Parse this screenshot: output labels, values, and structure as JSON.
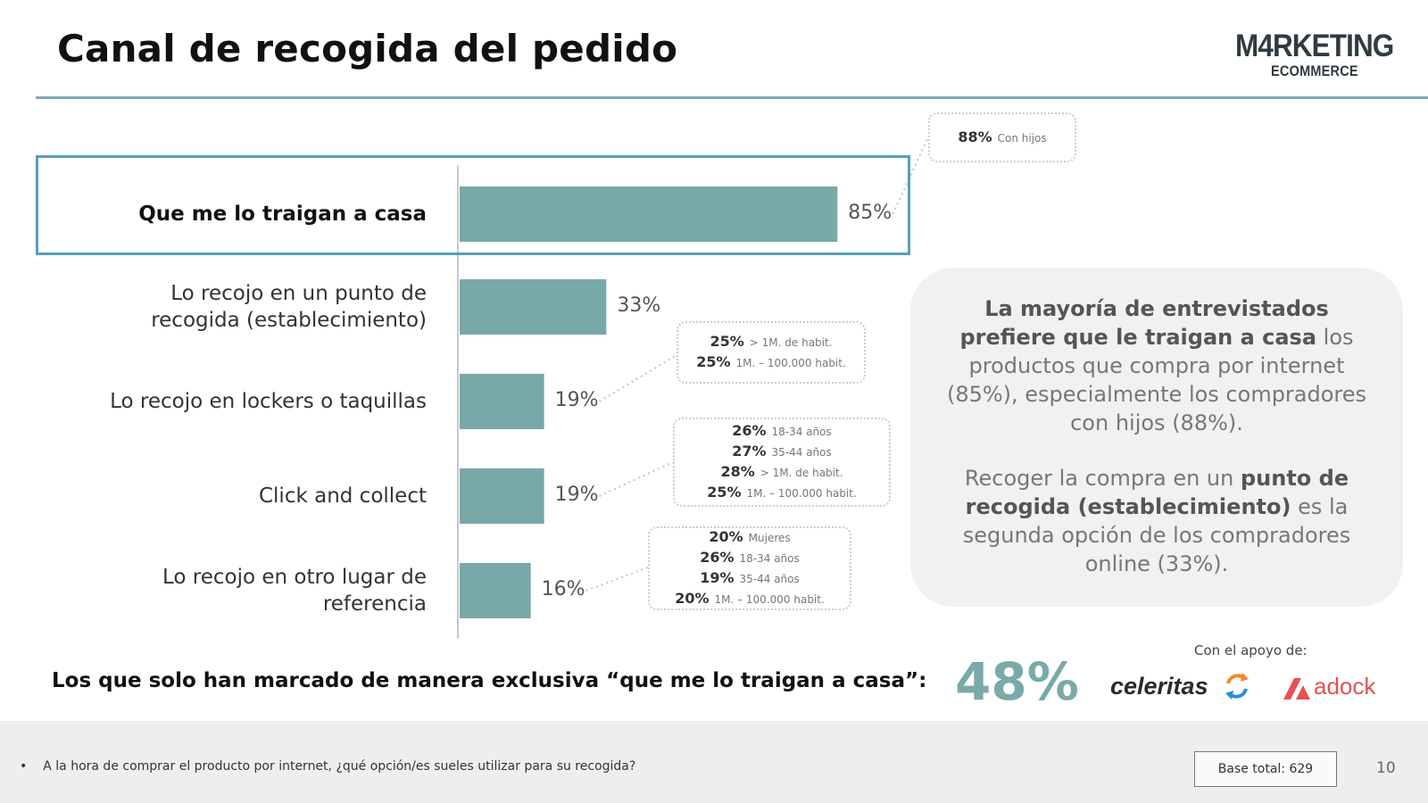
{
  "header": {
    "title": "Canal de recogida del pedido",
    "logo_top": "M4RKETING",
    "logo_bottom": "ECOMMERCE"
  },
  "chart_data": {
    "type": "bar",
    "orientation": "horizontal",
    "categories": [
      "Que me lo traigan a casa",
      "Lo recojo en un punto de recogida (establecimiento)",
      "Lo recojo en lockers o taquillas",
      "Click and collect",
      "Lo recojo en otro lugar de referencia"
    ],
    "values": [
      85,
      33,
      19,
      19,
      16
    ],
    "value_labels": [
      "85%",
      "33%",
      "19%",
      "19%",
      "16%"
    ],
    "unit": "%",
    "xlim": [
      0,
      100
    ],
    "bar_color": "#78a8a8",
    "highlight_index": 0,
    "highlight_color": "#5a9dba",
    "grid": false,
    "legend": "none"
  },
  "category_lines": [
    [
      "Que me lo traigan a casa"
    ],
    [
      "Lo recojo en un punto de",
      "recogida (establecimiento)"
    ],
    [
      "Lo recojo en lockers o taquillas"
    ],
    [
      "Click and collect"
    ],
    [
      "Lo recojo en otro lugar de",
      "referencia"
    ]
  ],
  "breakdowns": [
    {
      "category_index": 0,
      "rows": [
        {
          "pct": "88%",
          "label": "Con hijos"
        }
      ]
    },
    {
      "category_index": 2,
      "rows": [
        {
          "pct": "25%",
          "label": "> 1M. de habit."
        },
        {
          "pct": "25%",
          "label": "1M. – 100.000 habit."
        }
      ]
    },
    {
      "category_index": 3,
      "rows": [
        {
          "pct": "26%",
          "label": "18-34 años"
        },
        {
          "pct": "27%",
          "label": "35-44 años"
        },
        {
          "pct": "28%",
          "label": "> 1M. de habit."
        },
        {
          "pct": "25%",
          "label": "1M. – 100.000 habit."
        }
      ]
    },
    {
      "category_index": 4,
      "rows": [
        {
          "pct": "20%",
          "label": "Mujeres"
        },
        {
          "pct": "26%",
          "label": "18-34 años"
        },
        {
          "pct": "19%",
          "label": "35-44 años"
        },
        {
          "pct": "20%",
          "label": "1M. – 100.000 habit."
        }
      ]
    }
  ],
  "summary": {
    "p1_bold": "La mayoría de entrevistados prefiere que le traigan a casa",
    "p1_rest": " los productos que compra por internet (85%), especialmente los compradores con hijos (88%).",
    "p2_start": "Recoger la compra en un ",
    "p2_bold": "punto de recogida (establecimiento)",
    "p2_rest": " es la segunda opción de los compradores online (33%)."
  },
  "exclusive": {
    "text": "Los que solo han marcado de manera exclusiva “que me lo traigan a casa”:",
    "value": "48%"
  },
  "sponsors": {
    "label": "Con el apoyo de:",
    "celeritas": "celeritas",
    "adock": "adock"
  },
  "footer": {
    "bullet": "•",
    "question": "A la hora de comprar el producto por internet, ¿qué opción/es sueles utilizar para su recogida?",
    "base": "Base total: 629",
    "page": "10"
  },
  "colors": {
    "bar": "#78a8a8",
    "accent_rule": "#7fa9b5",
    "highlight": "#5a9dba",
    "big_value": "#7aa9a9",
    "adock_red": "#e85151",
    "celeritas_orange": "#f08a24",
    "celeritas_blue": "#2b8fd6"
  }
}
